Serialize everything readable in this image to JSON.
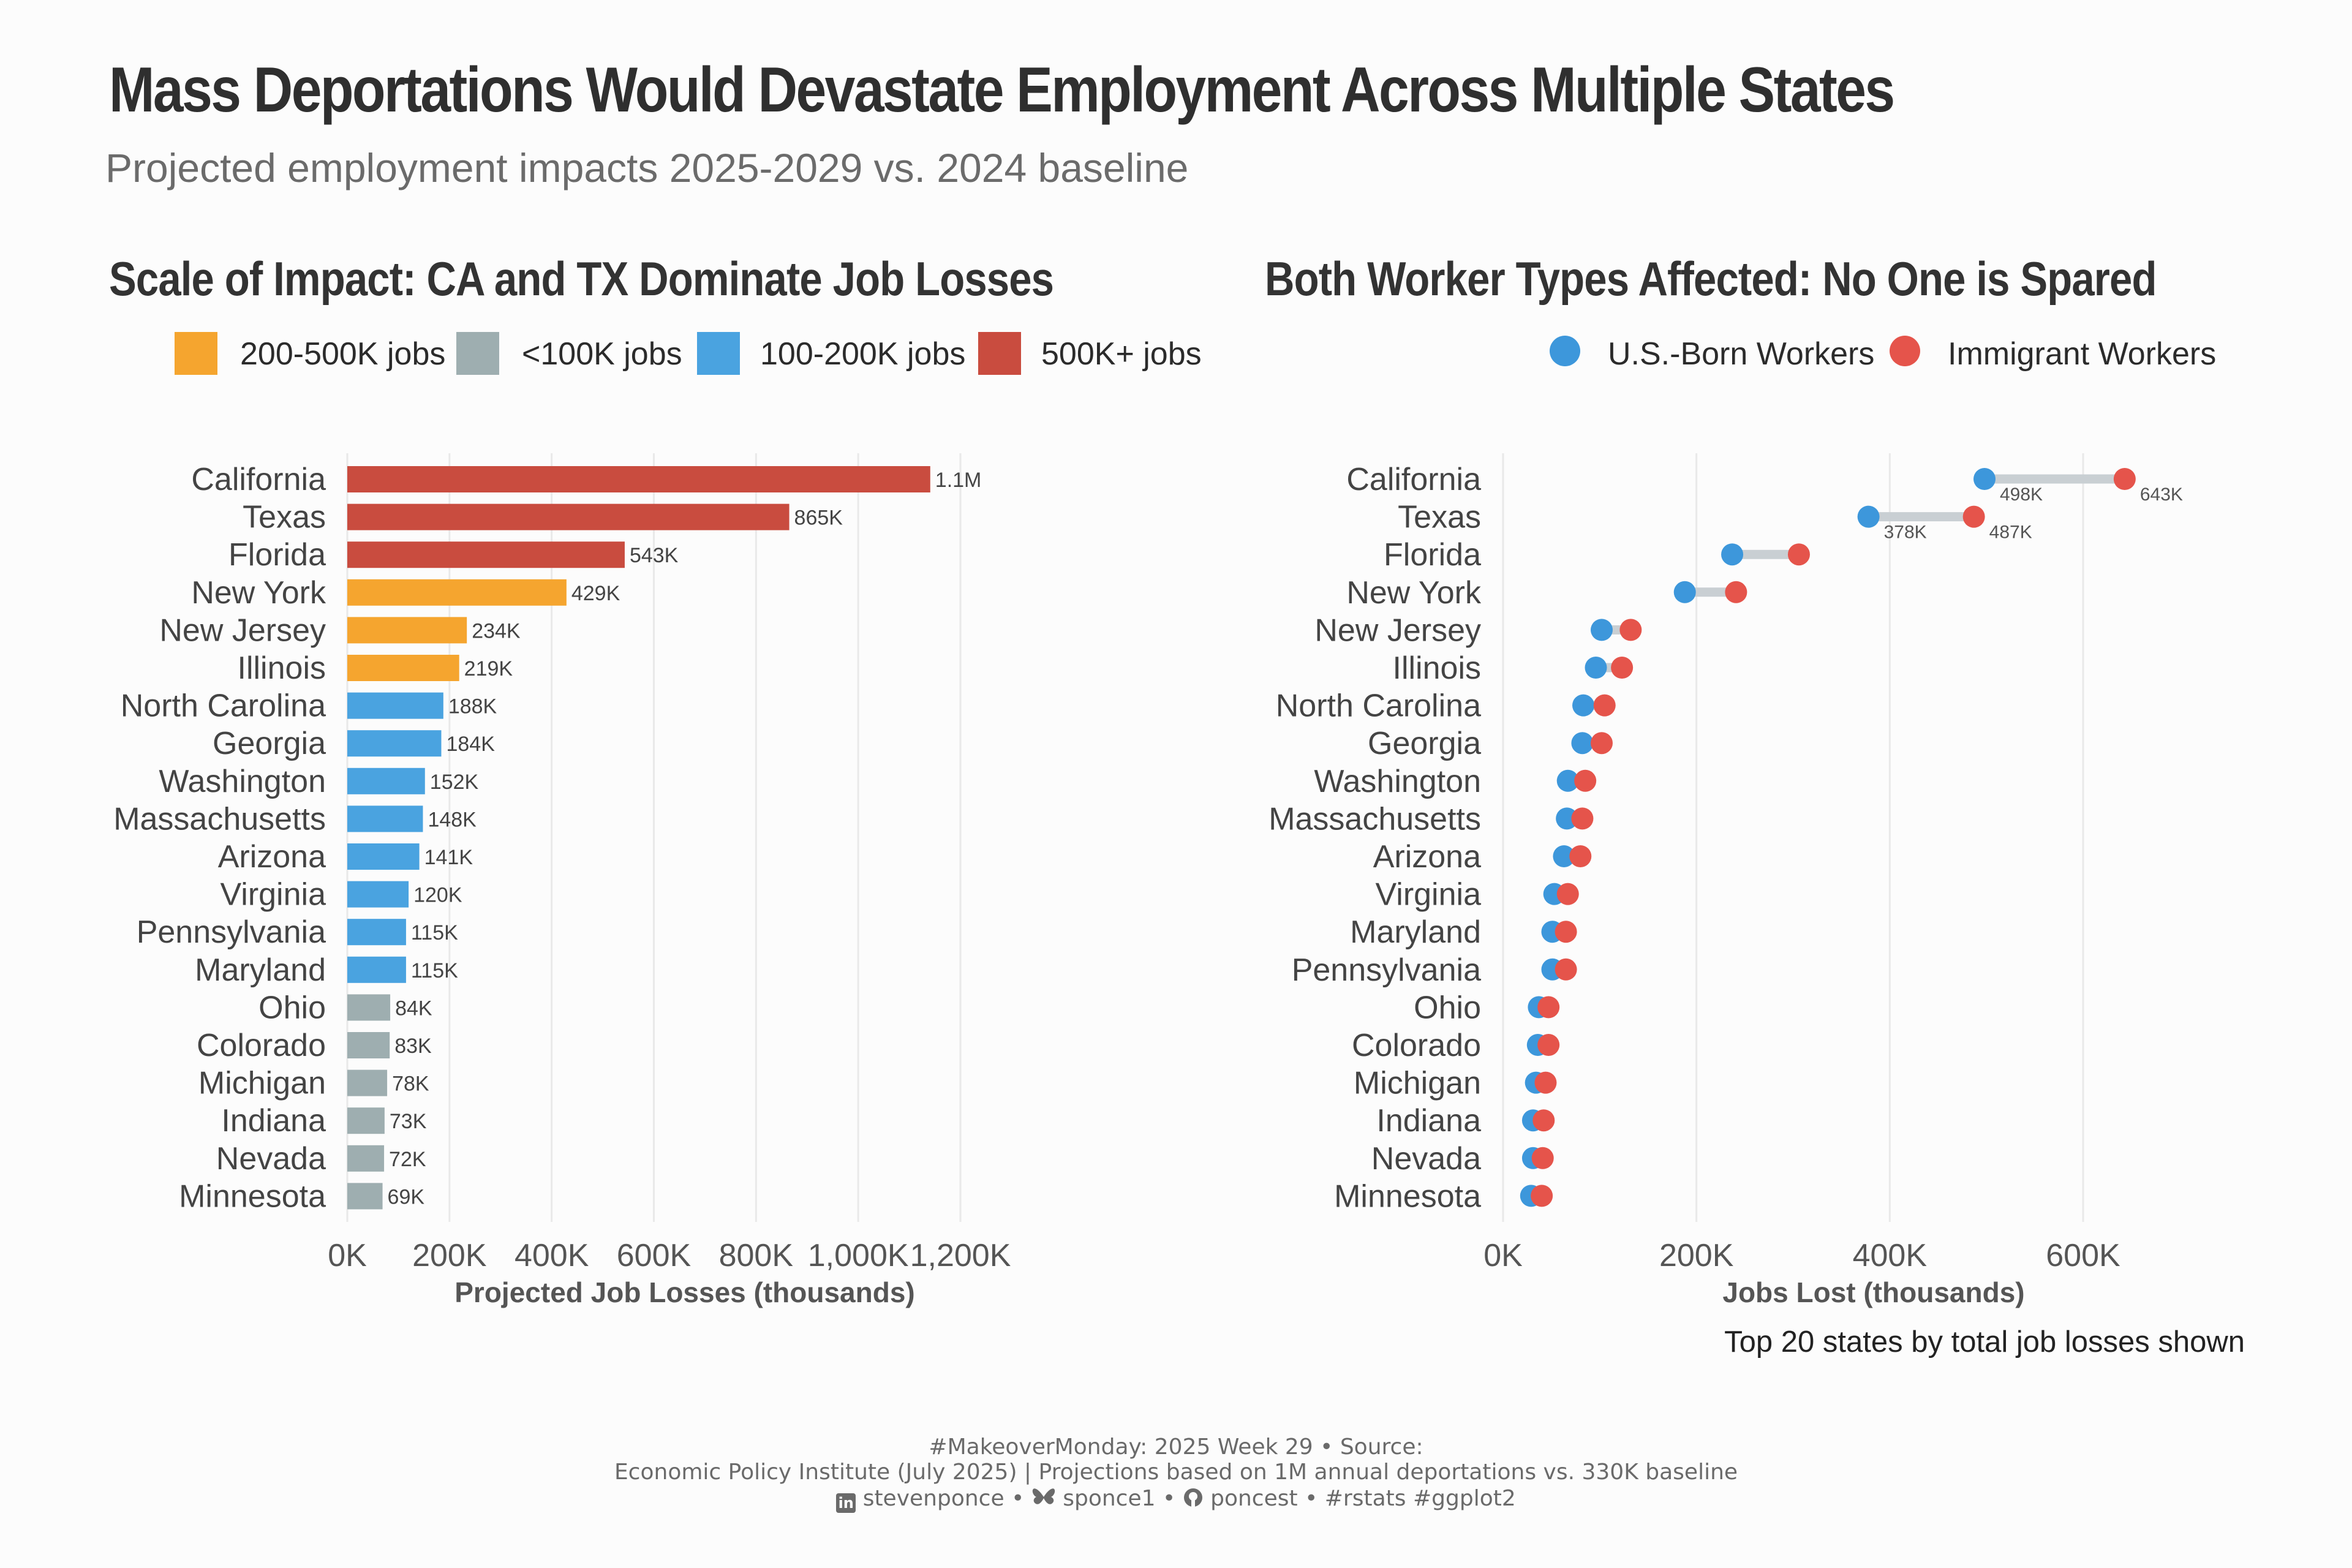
{
  "title": "Mass Deportations Would Devastate Employment Across Multiple States",
  "subtitle": "Projected employment impacts 2025-2029 vs. 2024 baseline",
  "panel1": {
    "title": "Scale of Impact: CA and TX Dominate Job Losses",
    "legend": [
      {
        "label": "200-500K jobs",
        "color": "#f5a52f"
      },
      {
        "label": "<100K jobs",
        "color": "#9eaeb0"
      },
      {
        "label": "100-200K jobs",
        "color": "#4aa3e0"
      },
      {
        "label": "500K+ jobs",
        "color": "#c94c3f"
      }
    ],
    "xlabel": "Projected Job Losses (thousands)"
  },
  "panel2": {
    "title": "Both Worker Types Affected: No One is Spared",
    "legend": [
      {
        "label": "U.S.-Born Workers",
        "color": "#3d97db"
      },
      {
        "label": "Immigrant Workers",
        "color": "#e5544b"
      }
    ],
    "xlabel": "Jobs Lost (thousands)",
    "caption": "Top 20 states by total job losses shown"
  },
  "chart_data": [
    {
      "type": "bar",
      "orientation": "horizontal",
      "title": "Scale of Impact: CA and TX Dominate Job Losses",
      "xlabel": "Projected Job Losses (thousands)",
      "xlim": [
        0,
        1200000
      ],
      "xticks": [
        0,
        200000,
        400000,
        600000,
        800000,
        1000000,
        1200000
      ],
      "xtick_labels": [
        "0K",
        "200K",
        "400K",
        "600K",
        "800K",
        "1,000K",
        "1,200K"
      ],
      "grid": "vertical",
      "legend_position": "top",
      "categories": [
        "California",
        "Texas",
        "Florida",
        "New York",
        "New Jersey",
        "Illinois",
        "North Carolina",
        "Georgia",
        "Washington",
        "Massachusetts",
        "Arizona",
        "Virginia",
        "Pennsylvania",
        "Maryland",
        "Ohio",
        "Colorado",
        "Michigan",
        "Indiana",
        "Nevada",
        "Minnesota"
      ],
      "values": [
        1141000,
        865000,
        543000,
        429000,
        234000,
        219000,
        188000,
        184000,
        152000,
        148000,
        141000,
        120000,
        115000,
        115000,
        84000,
        83000,
        78000,
        73000,
        72000,
        69000
      ],
      "labels": [
        "1.1M",
        "865K",
        "543K",
        "429K",
        "234K",
        "219K",
        "188K",
        "184K",
        "152K",
        "148K",
        "141K",
        "120K",
        "115K",
        "115K",
        "84K",
        "83K",
        "78K",
        "73K",
        "72K",
        "69K"
      ],
      "groups": [
        "500K+ jobs",
        "500K+ jobs",
        "500K+ jobs",
        "200-500K jobs",
        "200-500K jobs",
        "200-500K jobs",
        "100-200K jobs",
        "100-200K jobs",
        "100-200K jobs",
        "100-200K jobs",
        "100-200K jobs",
        "100-200K jobs",
        "100-200K jobs",
        "100-200K jobs",
        "<100K jobs",
        "<100K jobs",
        "<100K jobs",
        "<100K jobs",
        "<100K jobs",
        "<100K jobs"
      ]
    },
    {
      "type": "scatter",
      "subtype": "dumbbell",
      "title": "Both Worker Types Affected: No One is Spared",
      "xlabel": "Jobs Lost (thousands)",
      "xlim": [
        0,
        700000
      ],
      "xticks": [
        0,
        200000,
        400000,
        600000
      ],
      "xtick_labels": [
        "0K",
        "200K",
        "400K",
        "600K"
      ],
      "grid": "vertical",
      "legend_position": "top-right",
      "categories": [
        "California",
        "Texas",
        "Florida",
        "New York",
        "New Jersey",
        "Illinois",
        "North Carolina",
        "Georgia",
        "Washington",
        "Massachusetts",
        "Arizona",
        "Virginia",
        "Maryland",
        "Pennsylvania",
        "Ohio",
        "Colorado",
        "Michigan",
        "Indiana",
        "Nevada",
        "Minnesota"
      ],
      "series": [
        {
          "name": "U.S.-Born Workers",
          "values": [
            498000,
            378000,
            237000,
            188000,
            102000,
            96000,
            83000,
            82000,
            67000,
            66000,
            63000,
            53000,
            51000,
            51000,
            37000,
            36000,
            34000,
            31000,
            31000,
            29000
          ]
        },
        {
          "name": "Immigrant Workers",
          "values": [
            643000,
            487000,
            306000,
            241000,
            132000,
            123000,
            105000,
            102000,
            85000,
            82000,
            80000,
            67000,
            65000,
            65000,
            47000,
            47000,
            44000,
            42000,
            41000,
            40000
          ]
        }
      ],
      "point_labels": [
        {
          "category": "California",
          "us_born": "498K",
          "immigrant": "643K"
        },
        {
          "category": "Texas",
          "us_born": "378K",
          "immigrant": "487K"
        }
      ]
    }
  ],
  "footer": {
    "line1": "#MakeoverMonday: 2025 Week 29 • Source:",
    "line2": "Economic Policy Institute (July 2025) | Projections based on 1M annual deportations vs. 330K baseline",
    "line3_linkedin": "stevenponce",
    "line3_bluesky": "sponce1",
    "line3_github": "poncest",
    "line3_tags": "#rstats #ggplot2",
    "separator": "•"
  }
}
